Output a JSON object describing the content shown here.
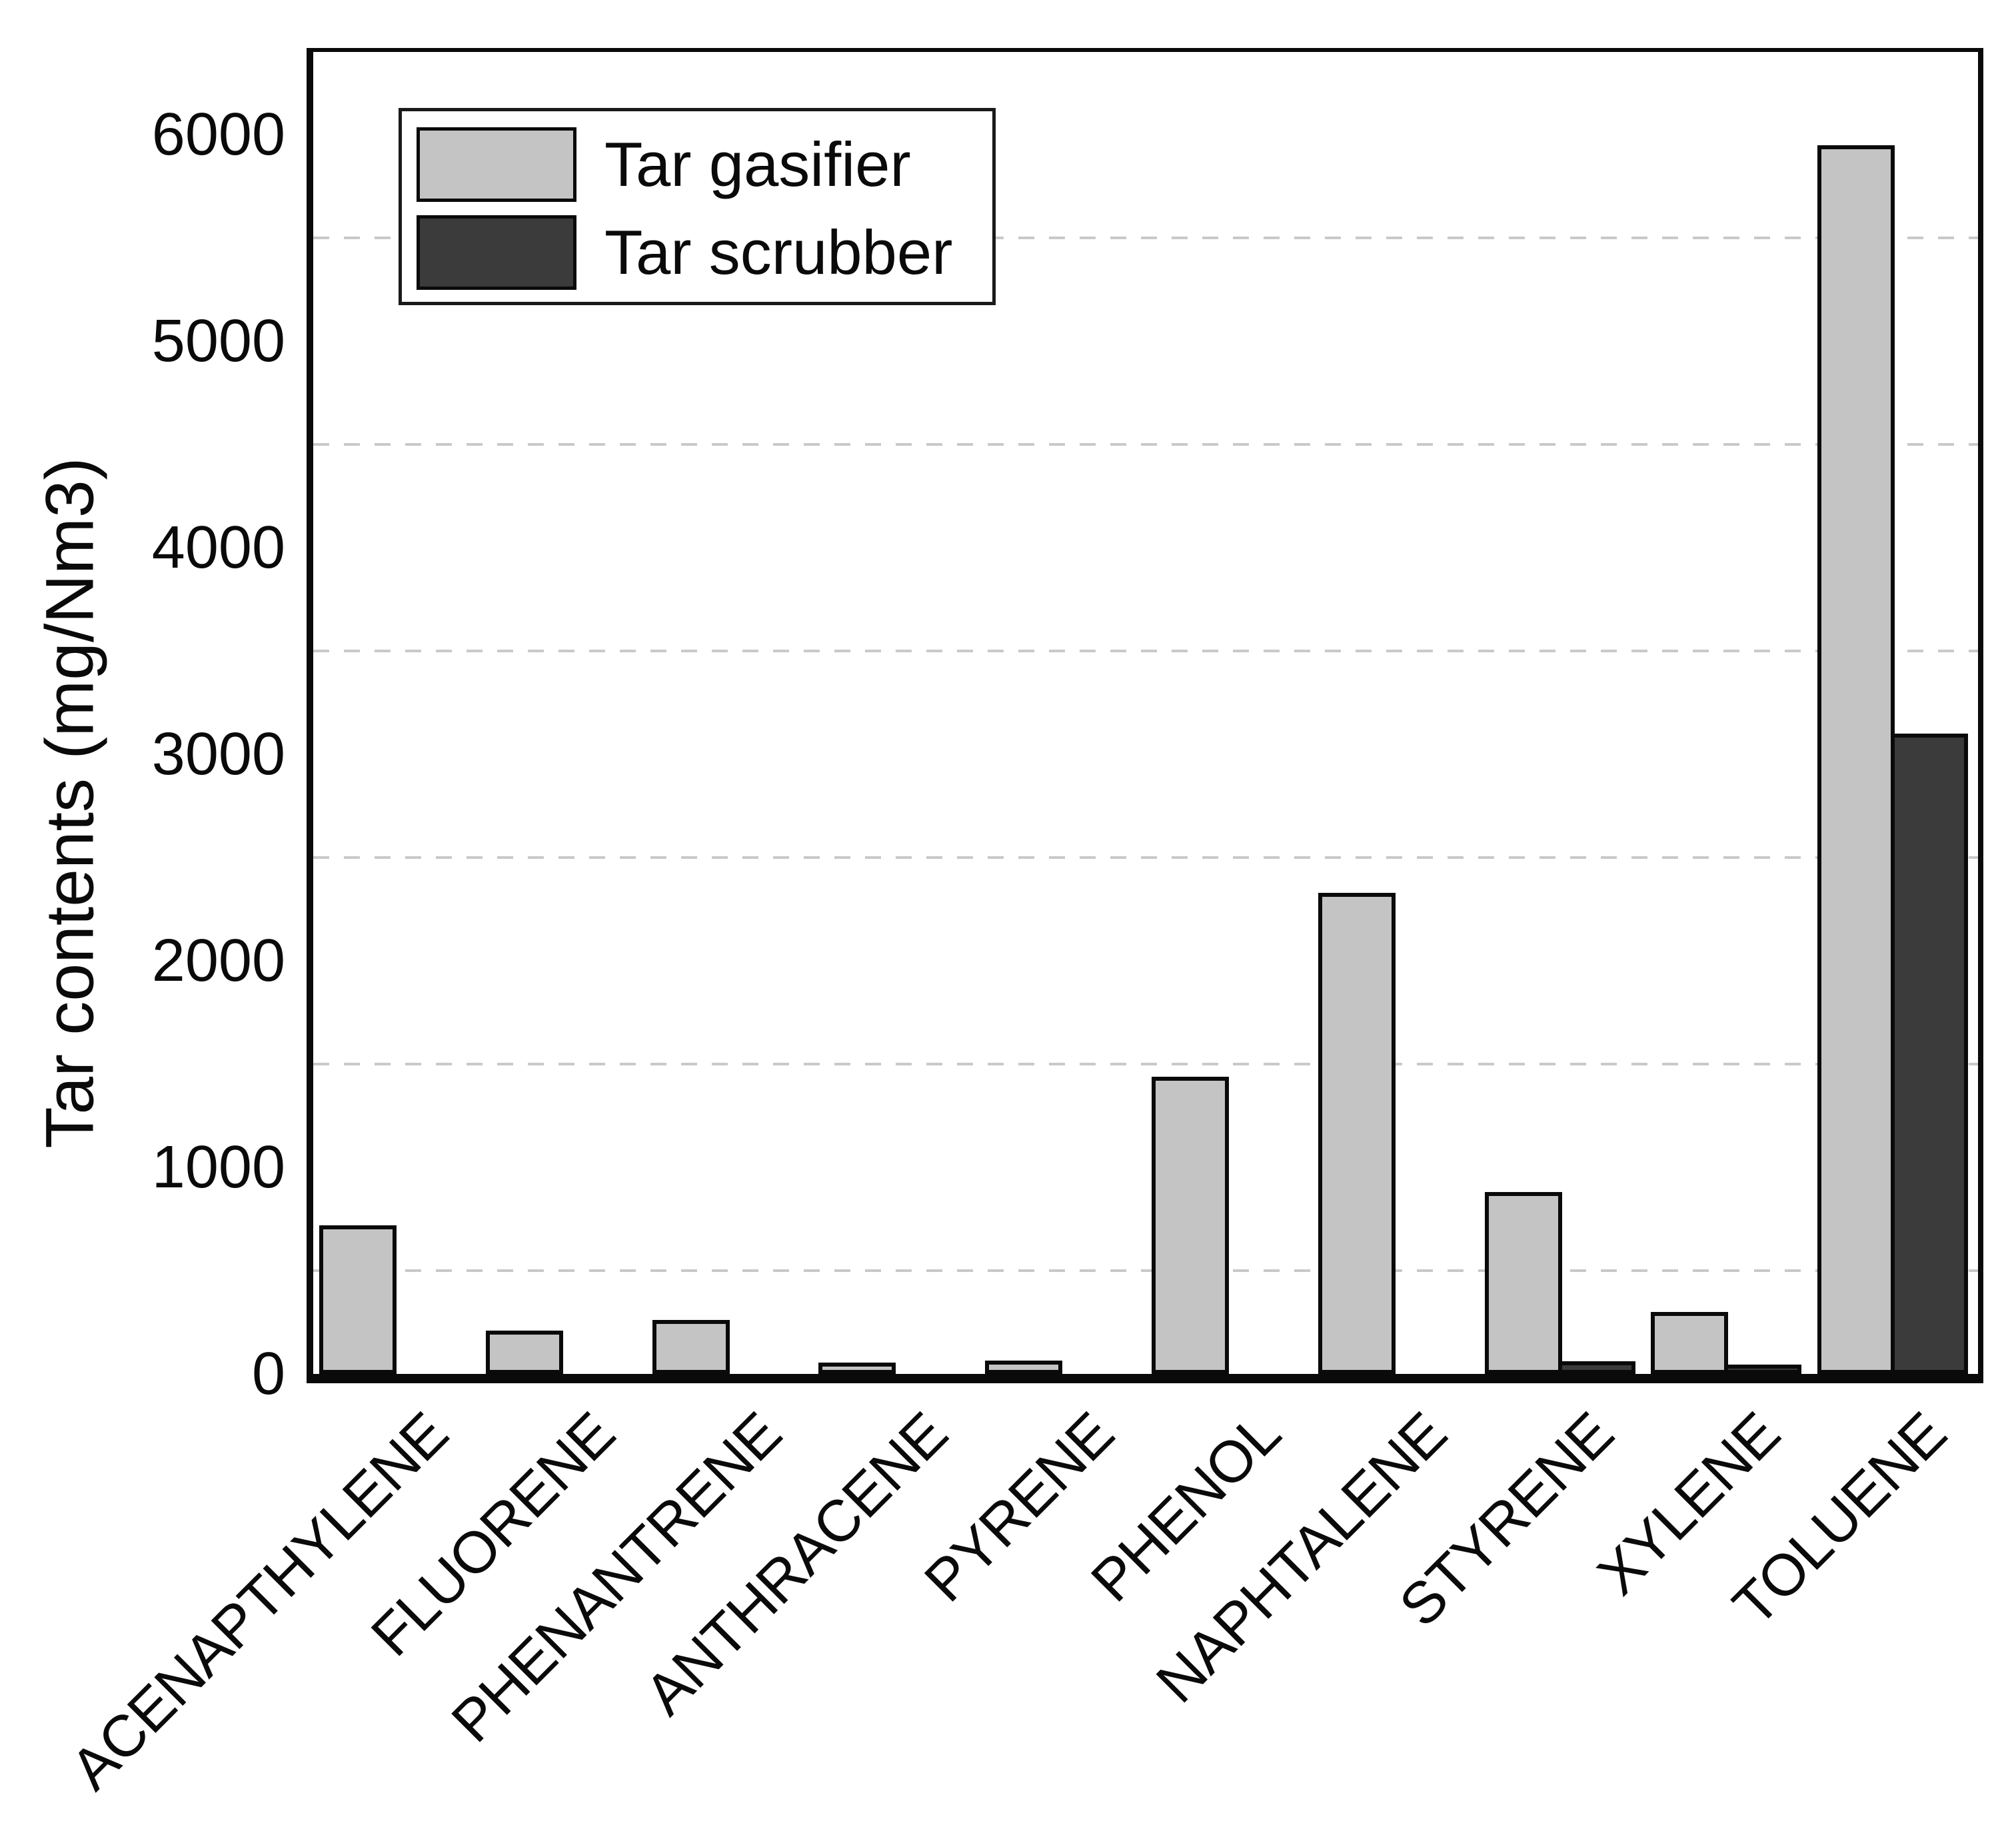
{
  "chart_data": {
    "type": "bar",
    "title": "",
    "xlabel": "",
    "ylabel": "Tar contents (mg/Nm3)",
    "categories": [
      "ACENAPTHYLENE",
      "FLUORENE",
      "PHENANTRENE",
      "ANTHRACENE",
      "PYRENE",
      "PHENOL",
      "NAPHTALENE",
      "STYRENE",
      "XYLENE",
      "TOLUENE"
    ],
    "series": [
      {
        "name": "Tar gasifier",
        "color": "#c4c4c4",
        "values": [
          720,
          210,
          260,
          55,
          65,
          1440,
          2330,
          880,
          300,
          5950
        ]
      },
      {
        "name": "Tar scrubber",
        "color": "#3b3b3b",
        "values": [
          0,
          0,
          0,
          0,
          0,
          0,
          0,
          60,
          45,
          3100
        ]
      }
    ],
    "ylim": [
      0,
      6400
    ],
    "yticks": [
      0,
      1000,
      2000,
      3000,
      4000,
      5000,
      6000
    ],
    "minor_gridlines": [
      500,
      1500,
      2500,
      3500,
      4500,
      5500
    ],
    "grid": "horizontal dashed minor gridlines",
    "legend_position": "upper-left",
    "units": "mg/Nm3"
  },
  "colors": {
    "axis": "#0a0a0a",
    "gridline": "#c9c9c9",
    "background": "#ffffff",
    "tar_gasifier": "#c4c4c4",
    "tar_scrubber": "#3b3b3b"
  }
}
